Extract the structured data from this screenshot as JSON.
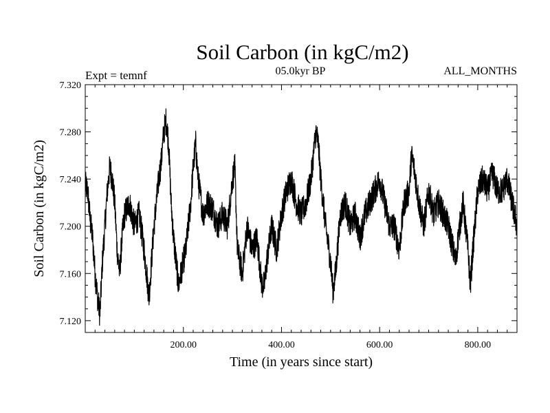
{
  "colors": {
    "line": "#000000",
    "axis": "#000000",
    "background": "#ffffff"
  },
  "chart_data": {
    "type": "line",
    "title": "Soil Carbon (in kgC/m2)",
    "subtitle": "05.0kyr BP",
    "left_label": "Expt = temnf",
    "right_label": "ALL_MONTHS",
    "xlabel": "Time (in years since start)",
    "ylabel": "Soil Carbon (in kgC/m2)",
    "xlim": [
      0,
      880
    ],
    "ylim": [
      7.11,
      7.32
    ],
    "x_ticks": [
      200,
      400,
      600,
      800
    ],
    "x_tick_labels": [
      "200.00",
      "400.00",
      "600.00",
      "800.00"
    ],
    "y_ticks": [
      7.12,
      7.16,
      7.2,
      7.24,
      7.28,
      7.32
    ],
    "y_tick_labels": [
      "7.120",
      "7.160",
      "7.200",
      "7.240",
      "7.280",
      "7.320"
    ],
    "grid": false,
    "noise_amplitude": 0.012,
    "series": [
      {
        "name": "Soil Carbon",
        "x": [
          0,
          5,
          10,
          15,
          20,
          25,
          30,
          35,
          40,
          45,
          50,
          55,
          60,
          65,
          70,
          75,
          80,
          90,
          100,
          110,
          120,
          130,
          140,
          150,
          155,
          160,
          165,
          170,
          175,
          180,
          185,
          190,
          195,
          200,
          205,
          210,
          215,
          220,
          225,
          230,
          240,
          250,
          260,
          270,
          280,
          290,
          300,
          305,
          310,
          320,
          330,
          340,
          350,
          360,
          365,
          370,
          380,
          390,
          400,
          410,
          420,
          430,
          440,
          450,
          460,
          470,
          475,
          480,
          490,
          500,
          505,
          510,
          520,
          530,
          540,
          550,
          560,
          570,
          580,
          590,
          600,
          610,
          620,
          630,
          640,
          650,
          660,
          665,
          670,
          680,
          690,
          700,
          710,
          720,
          730,
          740,
          750,
          755,
          760,
          770,
          780,
          785,
          790,
          800,
          810,
          820,
          830,
          840,
          850,
          860,
          870,
          880
        ],
        "y": [
          7.235,
          7.23,
          7.205,
          7.19,
          7.16,
          7.14,
          7.125,
          7.17,
          7.2,
          7.23,
          7.25,
          7.24,
          7.22,
          7.18,
          7.16,
          7.19,
          7.21,
          7.22,
          7.2,
          7.21,
          7.18,
          7.14,
          7.2,
          7.24,
          7.255,
          7.28,
          7.29,
          7.27,
          7.22,
          7.19,
          7.17,
          7.15,
          7.16,
          7.17,
          7.18,
          7.2,
          7.22,
          7.25,
          7.27,
          7.24,
          7.21,
          7.22,
          7.215,
          7.2,
          7.21,
          7.2,
          7.24,
          7.25,
          7.18,
          7.16,
          7.2,
          7.18,
          7.19,
          7.15,
          7.15,
          7.17,
          7.2,
          7.18,
          7.21,
          7.23,
          7.24,
          7.22,
          7.21,
          7.22,
          7.24,
          7.28,
          7.27,
          7.24,
          7.2,
          7.17,
          7.145,
          7.16,
          7.21,
          7.22,
          7.2,
          7.21,
          7.19,
          7.21,
          7.22,
          7.23,
          7.24,
          7.22,
          7.2,
          7.2,
          7.18,
          7.22,
          7.23,
          7.26,
          7.25,
          7.22,
          7.2,
          7.23,
          7.21,
          7.22,
          7.21,
          7.2,
          7.18,
          7.17,
          7.19,
          7.22,
          7.18,
          7.15,
          7.18,
          7.23,
          7.24,
          7.23,
          7.245,
          7.23,
          7.23,
          7.24,
          7.22,
          7.2
        ]
      }
    ]
  }
}
